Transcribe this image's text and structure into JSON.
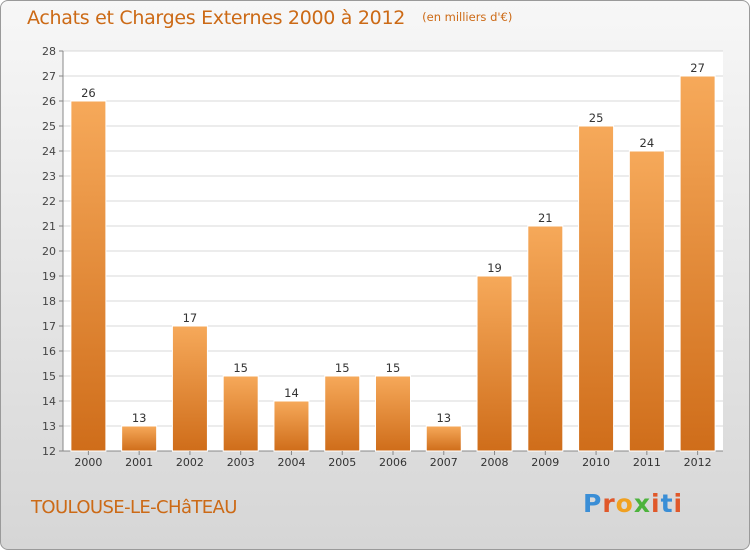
{
  "title": "Achats et Charges Externes 2000 à 2012",
  "unit_note": "(en milliers d'€)",
  "commune": "TOULOUSE-LE-CHâTEAU",
  "logo": {
    "text": "Proxiti",
    "letter_colors": [
      "#3a8ed6",
      "#e0582a",
      "#f0a020",
      "#4db33d",
      "#e0582a",
      "#3a8ed6",
      "#e0582a"
    ]
  },
  "colors": {
    "bar_light": "#f6a95a",
    "bar_dark": "#cf6d1a",
    "text_accent": "#cc6a16",
    "axis": "#888888",
    "grid": "#d8d8d8"
  },
  "chart_data": {
    "type": "bar",
    "categories": [
      "2000",
      "2001",
      "2002",
      "2003",
      "2004",
      "2005",
      "2006",
      "2007",
      "2008",
      "2009",
      "2010",
      "2011",
      "2012"
    ],
    "values": [
      26,
      13,
      17,
      15,
      14,
      15,
      15,
      13,
      19,
      21,
      25,
      24,
      27
    ],
    "ylim": [
      12,
      28
    ],
    "yticks": [
      12,
      13,
      14,
      15,
      16,
      17,
      18,
      19,
      20,
      21,
      22,
      23,
      24,
      25,
      26,
      27,
      28
    ],
    "grid": true,
    "data_labels": true
  }
}
